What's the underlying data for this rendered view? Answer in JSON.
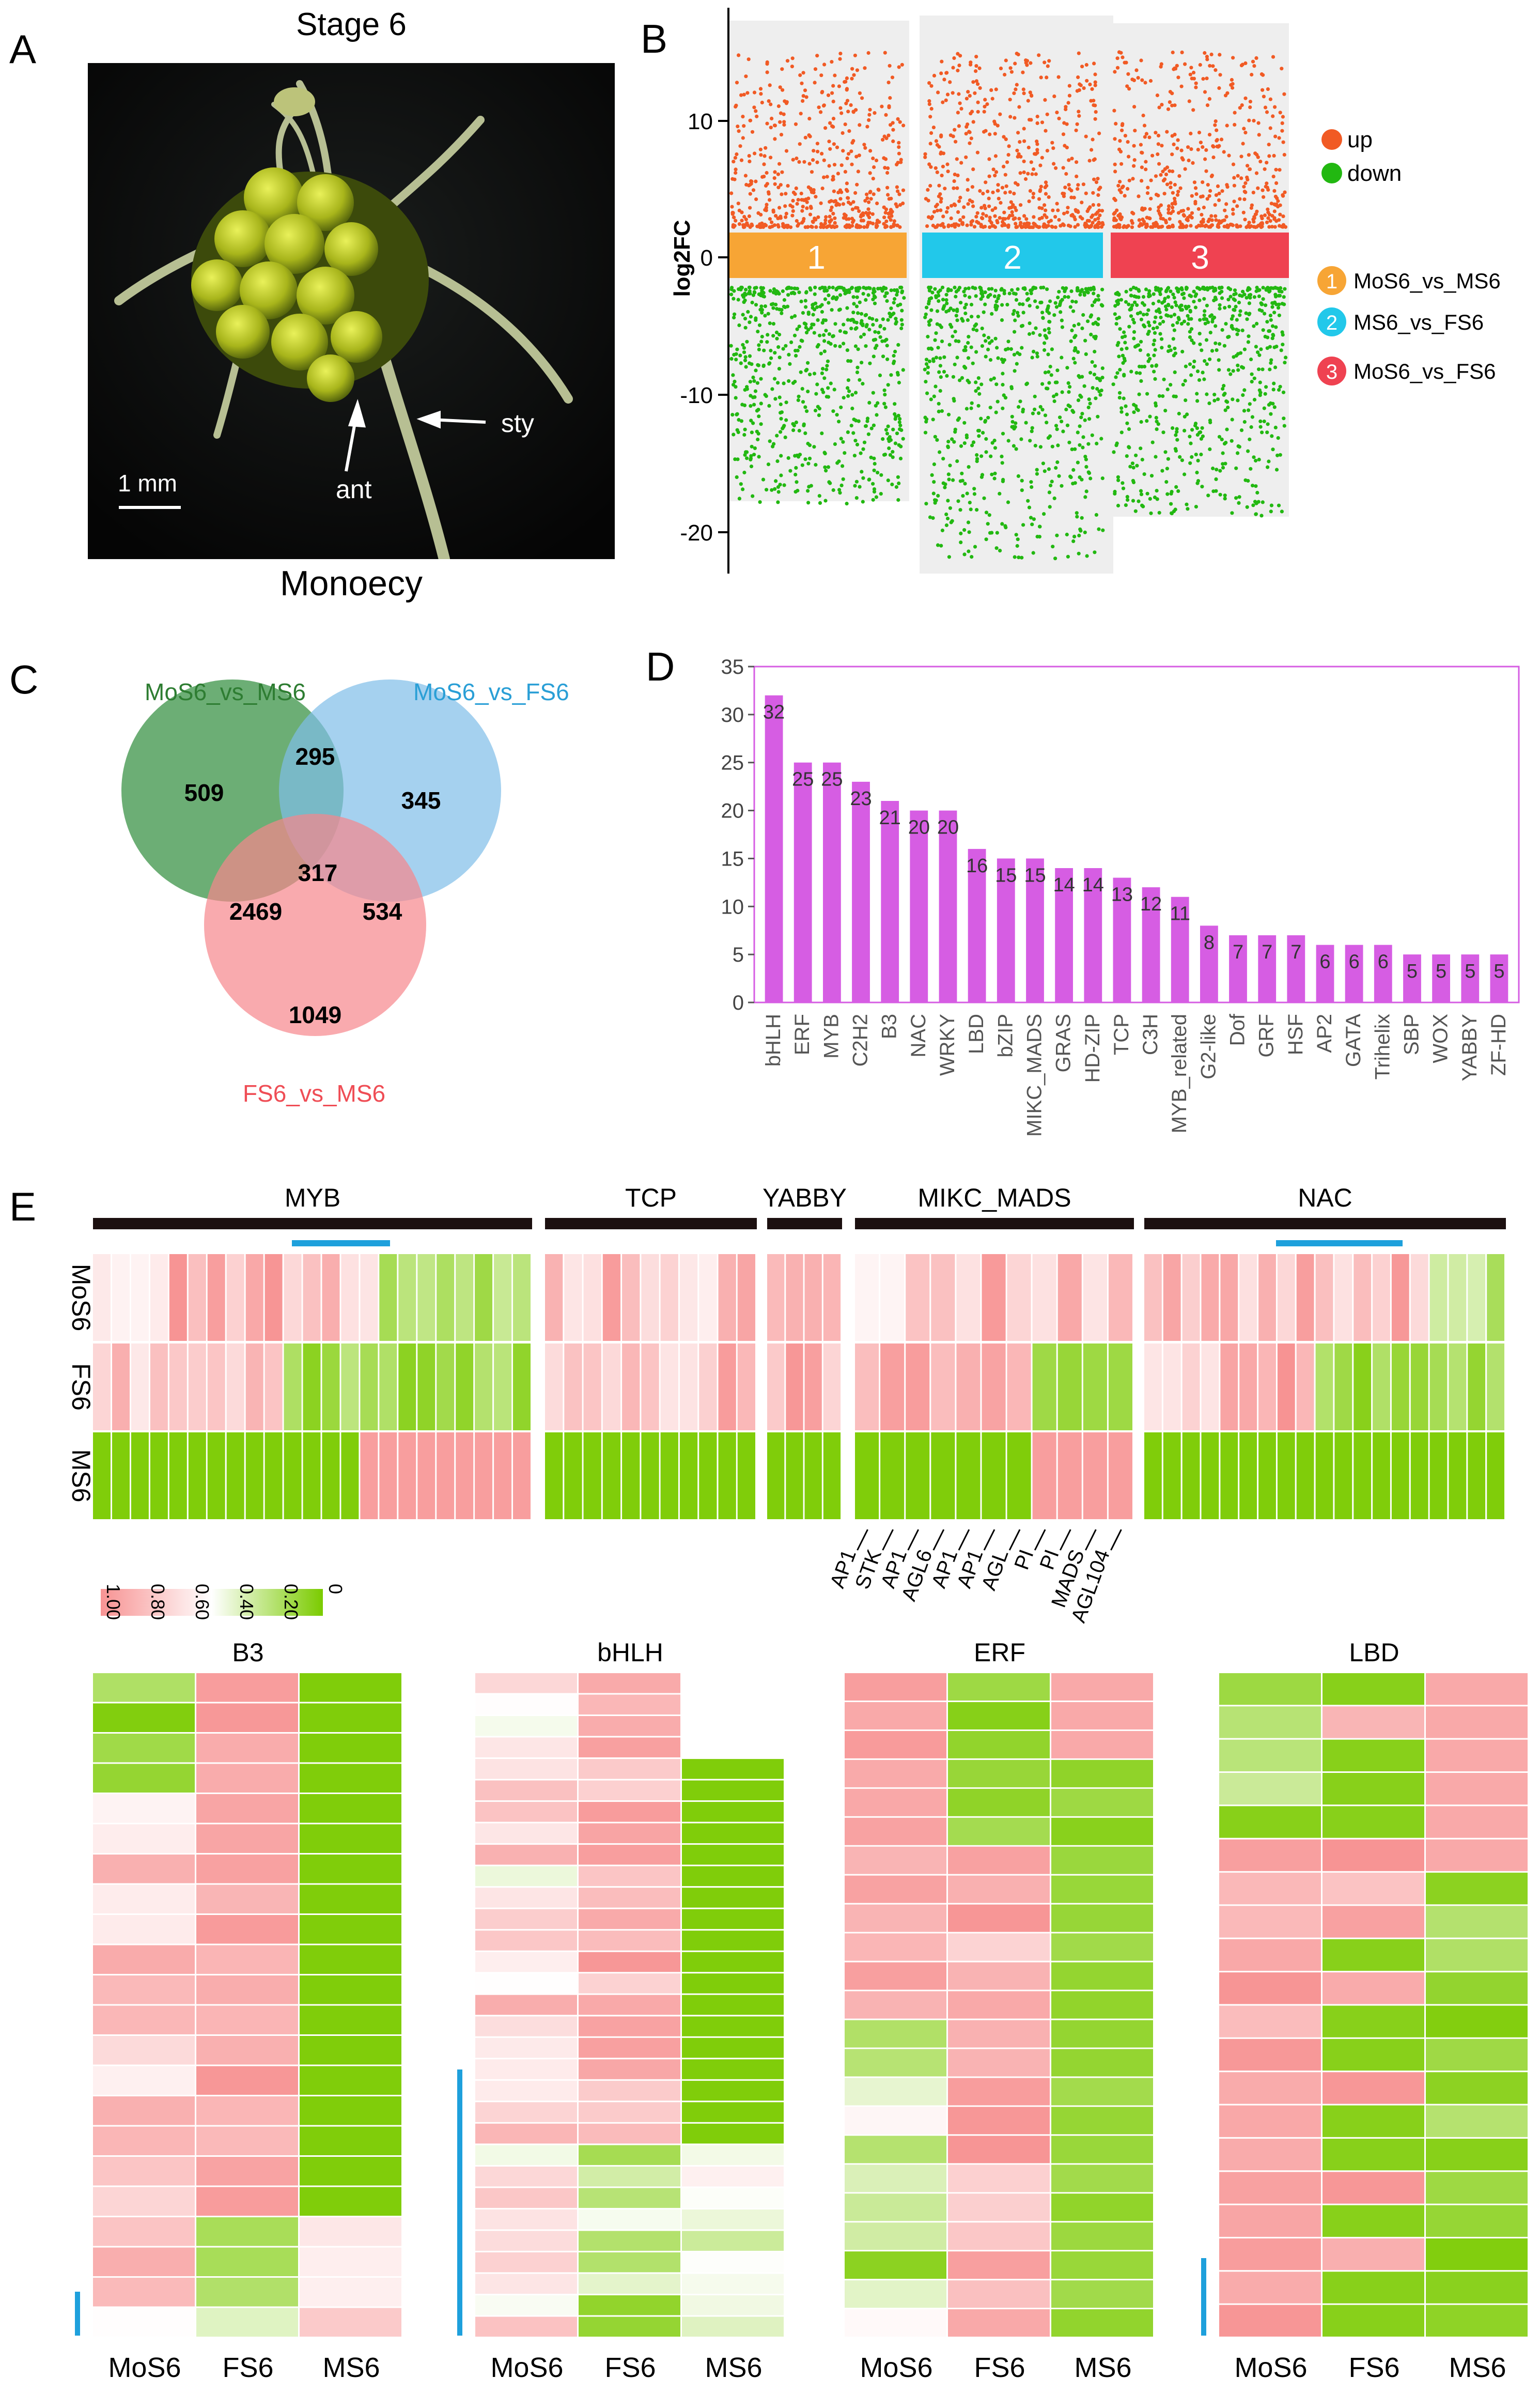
{
  "panels": {
    "a": {
      "letter": "A",
      "title": "Stage 6",
      "caption": "Monoecy",
      "labels": {
        "ant": "ant",
        "sty": "sty",
        "scale": "1 mm"
      }
    },
    "b": {
      "letter": "B",
      "ylabel": "log2FC",
      "yticks": [
        "10",
        "0",
        "-10",
        "-20"
      ],
      "legend_up": "up",
      "legend_down": "down",
      "comparisons": [
        {
          "num": "1",
          "name": "MoS6_vs_MS6",
          "color": "#f7a535"
        },
        {
          "num": "2",
          "name": "MS6_vs_FS6",
          "color": "#22c8ea"
        },
        {
          "num": "3",
          "name": "MoS6_vs_FS6",
          "color": "#ef4251"
        }
      ],
      "colors": {
        "up": "#f15a24",
        "down": "#22b811"
      }
    },
    "c": {
      "letter": "C",
      "sets": [
        {
          "name": "MoS6_vs_MS6",
          "color": "#2e8b3a"
        },
        {
          "name": "MoS6_vs_FS6",
          "color": "#2a9fd6"
        },
        {
          "name": "FS6_vs_MS6",
          "color": "#f06a6f"
        }
      ],
      "counts": {
        "only_a": "509",
        "ab": "295",
        "only_b": "345",
        "abc": "317",
        "ac": "2469",
        "bc": "534",
        "only_c": "1049"
      }
    },
    "d": {
      "letter": "D",
      "yticks": [
        "0",
        "5",
        "10",
        "15",
        "20",
        "25",
        "30",
        "35"
      ]
    },
    "e": {
      "letter": "E",
      "families": [
        "MYB",
        "TCP",
        "YABBY",
        "MIKC_MADS",
        "NAC"
      ],
      "row_labels": [
        "MoS6",
        "FS6",
        "MS6"
      ],
      "legend_ticks": [
        "1.00",
        "0.80",
        "0.60",
        "0.40",
        "0.20",
        "0"
      ],
      "mads_genes": [
        "AP1",
        "STK",
        "AP1",
        "AGL6",
        "AP1",
        "AP1",
        "AGL",
        "PI",
        "PI",
        "MADS",
        "AGL104"
      ],
      "sub_titles": [
        "B3",
        "bHLH",
        "ERF",
        "LBD"
      ],
      "col_labels": [
        "MoS6",
        "FS6",
        "MS6"
      ]
    }
  },
  "chart_data": [
    {
      "type": "bar",
      "title": "",
      "xlabel": "",
      "ylabel": "",
      "ylim": [
        0,
        35
      ],
      "categories": [
        "bHLH",
        "ERF",
        "MYB",
        "C2H2",
        "B3",
        "NAC",
        "WRKY",
        "LBD",
        "bZIP",
        "MIKC_MADS",
        "GRAS",
        "HD-ZIP",
        "TCP",
        "C3H",
        "MYB_related",
        "G2-like",
        "Dof",
        "GRF",
        "HSF",
        "AP2",
        "GATA",
        "Trihelix",
        "SBP",
        "WOX",
        "YABBY",
        "ZF-HD"
      ],
      "values": [
        32,
        25,
        25,
        23,
        21,
        20,
        20,
        16,
        15,
        15,
        14,
        14,
        13,
        12,
        11,
        8,
        7,
        7,
        7,
        6,
        6,
        6,
        5,
        5,
        5,
        5
      ],
      "color": "#d65de3"
    }
  ]
}
